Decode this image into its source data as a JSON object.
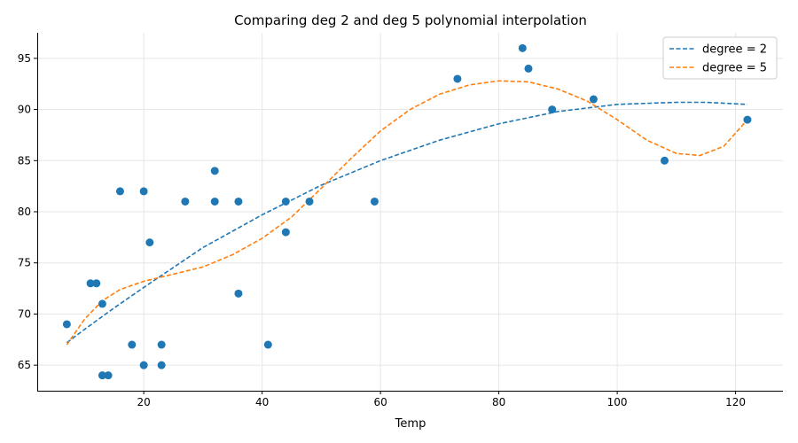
{
  "chart_data": {
    "type": "scatter",
    "title": "Comparing deg 2 and deg 5 polynomial interpolation",
    "xlabel": "Temp",
    "ylabel": "",
    "xlim": [
      2,
      128
    ],
    "ylim": [
      62.5,
      97.5
    ],
    "xticks": [
      20,
      40,
      60,
      80,
      100,
      120
    ],
    "yticks": [
      65,
      70,
      75,
      80,
      85,
      90,
      95
    ],
    "grid": true,
    "legend_position": "top-right",
    "colors": {
      "scatter": "#1f77b4",
      "deg2": "#1f77b4",
      "deg5": "#ff7f0e",
      "grid": "#e6e6e6",
      "axis": "#000000"
    },
    "points": [
      {
        "x": 7,
        "y": 69
      },
      {
        "x": 11,
        "y": 73
      },
      {
        "x": 12,
        "y": 73
      },
      {
        "x": 13,
        "y": 71
      },
      {
        "x": 13,
        "y": 64
      },
      {
        "x": 14,
        "y": 64
      },
      {
        "x": 16,
        "y": 82
      },
      {
        "x": 18,
        "y": 67
      },
      {
        "x": 20,
        "y": 82
      },
      {
        "x": 20,
        "y": 65
      },
      {
        "x": 21,
        "y": 77
      },
      {
        "x": 23,
        "y": 67
      },
      {
        "x": 23,
        "y": 65
      },
      {
        "x": 27,
        "y": 81
      },
      {
        "x": 32,
        "y": 84
      },
      {
        "x": 32,
        "y": 81
      },
      {
        "x": 36,
        "y": 81
      },
      {
        "x": 36,
        "y": 72
      },
      {
        "x": 41,
        "y": 67
      },
      {
        "x": 44,
        "y": 81
      },
      {
        "x": 44,
        "y": 78
      },
      {
        "x": 48,
        "y": 81
      },
      {
        "x": 59,
        "y": 81
      },
      {
        "x": 73,
        "y": 93
      },
      {
        "x": 84,
        "y": 96
      },
      {
        "x": 85,
        "y": 94
      },
      {
        "x": 89,
        "y": 90
      },
      {
        "x": 96,
        "y": 91
      },
      {
        "x": 108,
        "y": 85
      },
      {
        "x": 122,
        "y": 89
      }
    ],
    "series": [
      {
        "name": "degree = 2",
        "style": "dashed",
        "x": [
          7,
          10,
          15,
          20,
          30,
          40,
          50,
          60,
          70,
          80,
          90,
          100,
          110,
          115,
          122
        ],
        "y": [
          67.2,
          68.5,
          70.6,
          72.6,
          76.5,
          79.7,
          82.6,
          85.0,
          87.0,
          88.6,
          89.8,
          90.5,
          90.7,
          90.7,
          90.5
        ]
      },
      {
        "name": "degree = 5",
        "style": "dashed",
        "x": [
          7,
          10,
          13,
          16,
          20,
          25,
          30,
          35,
          40,
          45,
          50,
          55,
          60,
          65,
          70,
          75,
          80,
          85,
          90,
          95,
          100,
          105,
          110,
          114,
          118,
          122
        ],
        "y": [
          67.0,
          69.5,
          71.3,
          72.4,
          73.2,
          73.9,
          74.6,
          75.8,
          77.4,
          79.5,
          82.3,
          85.2,
          87.9,
          90.0,
          91.5,
          92.4,
          92.8,
          92.7,
          92.0,
          90.8,
          89.0,
          87.0,
          85.7,
          85.5,
          86.4,
          89.0
        ]
      }
    ]
  }
}
